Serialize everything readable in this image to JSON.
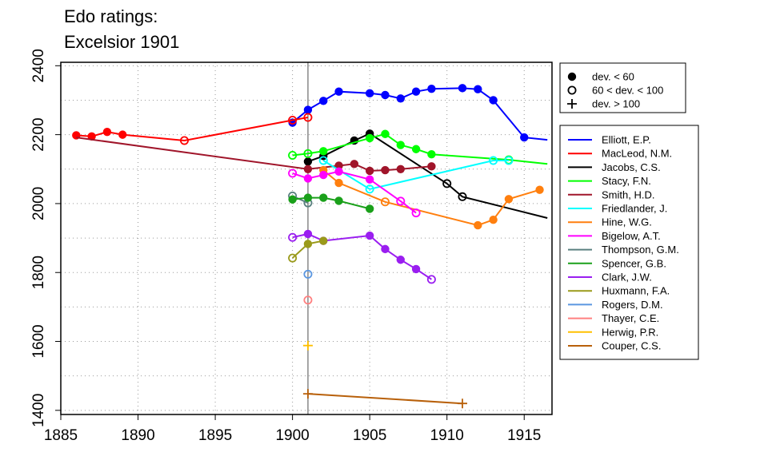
{
  "chart_data": {
    "type": "line",
    "title": "Edo ratings:",
    "subtitle": "Excelsior 1901",
    "xlim": [
      1885,
      1916.8
    ],
    "ylim": [
      1388,
      2410
    ],
    "xticks": [
      "1885",
      "1890",
      "1895",
      "1900",
      "1905",
      "1910",
      "1915"
    ],
    "yticks": [
      "1400",
      "1600",
      "1800",
      "2000",
      "2200",
      "2400"
    ],
    "grid": true,
    "reference_line_x": 1901,
    "marker_legend": {
      "placement": "top-right, outside plot",
      "entries": [
        {
          "marker": "filled",
          "label": "dev. < 60"
        },
        {
          "marker": "open",
          "label": "60 < dev. < 100"
        },
        {
          "marker": "plus",
          "label": "dev. > 100"
        }
      ]
    },
    "series": [
      {
        "name": "Elliott, E.P.",
        "color": "#0000ff",
        "points": [
          [
            1900,
            2235,
            "filled"
          ],
          [
            1901,
            2272,
            "filled"
          ],
          [
            1902,
            2298,
            "filled"
          ],
          [
            1903,
            2325,
            "filled"
          ],
          [
            1905,
            2320,
            "filled"
          ],
          [
            1906,
            2315,
            "filled"
          ],
          [
            1907,
            2305,
            "filled"
          ],
          [
            1908,
            2325,
            "filled"
          ],
          [
            1909,
            2333,
            "filled"
          ],
          [
            1911,
            2335,
            "filled"
          ],
          [
            1912,
            2332,
            "filled"
          ],
          [
            1913,
            2300,
            "filled"
          ],
          [
            1915,
            2192,
            "filled"
          ],
          [
            1916.5,
            2185,
            "none"
          ]
        ]
      },
      {
        "name": "MacLeod, N.M.",
        "color": "#ff0000",
        "points": [
          [
            1886,
            2198,
            "filled"
          ],
          [
            1887,
            2195,
            "filled"
          ],
          [
            1888,
            2208,
            "filled"
          ],
          [
            1889,
            2200,
            "filled"
          ],
          [
            1893,
            2183,
            "open"
          ],
          [
            1900,
            2242,
            "open"
          ],
          [
            1901,
            2250,
            "open"
          ]
        ]
      },
      {
        "name": "Jacobs, C.S.",
        "color": "#000000",
        "points": [
          [
            1901,
            2122,
            "filled"
          ],
          [
            1902,
            2138,
            "filled"
          ],
          [
            1904,
            2183,
            "filled"
          ],
          [
            1905,
            2203,
            "filled"
          ],
          [
            1910,
            2058,
            "open"
          ],
          [
            1911,
            2020,
            "open"
          ],
          [
            1916.5,
            1958,
            "none"
          ]
        ]
      },
      {
        "name": "Stacy, F.N.",
        "color": "#00ff00",
        "points": [
          [
            1900,
            2140,
            "open"
          ],
          [
            1901,
            2145,
            "open"
          ],
          [
            1902,
            2152,
            "filled"
          ],
          [
            1905,
            2190,
            "filled"
          ],
          [
            1906,
            2202,
            "filled"
          ],
          [
            1907,
            2170,
            "filled"
          ],
          [
            1908,
            2158,
            "filled"
          ],
          [
            1909,
            2143,
            "filled"
          ],
          [
            1914,
            2127,
            "open"
          ],
          [
            1916.5,
            2115,
            "none"
          ]
        ]
      },
      {
        "name": "Smith, H.D.",
        "color": "#a0152a",
        "points": [
          [
            1886,
            2192,
            "none"
          ],
          [
            1901,
            2100,
            "filled"
          ],
          [
            1903,
            2110,
            "filled"
          ],
          [
            1904,
            2115,
            "filled"
          ],
          [
            1905,
            2095,
            "filled"
          ],
          [
            1906,
            2097,
            "filled"
          ],
          [
            1907,
            2100,
            "filled"
          ],
          [
            1909,
            2108,
            "filled"
          ]
        ]
      },
      {
        "name": "Friedlander, J.",
        "color": "#00ffff",
        "points": [
          [
            1902,
            2125,
            "open"
          ],
          [
            1905,
            2042,
            "open"
          ],
          [
            1913,
            2125,
            "open"
          ],
          [
            1914,
            2125,
            "open"
          ]
        ]
      },
      {
        "name": "Hine, W.G.",
        "color": "#ff7f0e",
        "points": [
          [
            1902,
            2097,
            "filled"
          ],
          [
            1903,
            2060,
            "filled"
          ],
          [
            1906,
            2005,
            "open"
          ],
          [
            1912,
            1937,
            "filled"
          ],
          [
            1913,
            1953,
            "filled"
          ],
          [
            1914,
            2013,
            "filled"
          ],
          [
            1916,
            2040,
            "filled"
          ]
        ]
      },
      {
        "name": "Bigelow, A.T.",
        "color": "#ff00ff",
        "points": [
          [
            1900,
            2088,
            "open"
          ],
          [
            1901,
            2073,
            "filled"
          ],
          [
            1902,
            2083,
            "filled"
          ],
          [
            1903,
            2093,
            "filled"
          ],
          [
            1905,
            2070,
            "filled"
          ],
          [
            1907,
            2007,
            "open"
          ],
          [
            1908,
            1973,
            "open"
          ]
        ]
      },
      {
        "name": "Thompson, G.M.",
        "color": "#5a8080",
        "points": [
          [
            1900,
            2022,
            "open"
          ],
          [
            1901,
            2002,
            "open"
          ]
        ]
      },
      {
        "name": "Spencer, G.B.",
        "color": "#1aa01a",
        "points": [
          [
            1900,
            2012,
            "filled"
          ],
          [
            1901,
            2017,
            "filled"
          ],
          [
            1902,
            2017,
            "filled"
          ],
          [
            1903,
            2008,
            "filled"
          ],
          [
            1905,
            1985,
            "filled"
          ]
        ]
      },
      {
        "name": "Clark, J.W.",
        "color": "#9a1ef0",
        "points": [
          [
            1900,
            1902,
            "open"
          ],
          [
            1901,
            1912,
            "filled"
          ],
          [
            1902,
            1892,
            "filled"
          ],
          [
            1905,
            1907,
            "filled"
          ],
          [
            1906,
            1868,
            "filled"
          ],
          [
            1907,
            1837,
            "filled"
          ],
          [
            1908,
            1810,
            "filled"
          ],
          [
            1909,
            1780,
            "open"
          ]
        ]
      },
      {
        "name": "Huxmann, F.A.",
        "color": "#9a9a1a",
        "points": [
          [
            1900,
            1842,
            "open"
          ],
          [
            1901,
            1883,
            "filled"
          ],
          [
            1902,
            1892,
            "filled"
          ]
        ]
      },
      {
        "name": "Rogers, D.M.",
        "color": "#5a96e0",
        "points": [
          [
            1901,
            1795,
            "open"
          ]
        ]
      },
      {
        "name": "Thayer, C.E.",
        "color": "#ff8080",
        "points": [
          [
            1901,
            1720,
            "open"
          ]
        ]
      },
      {
        "name": "Herwig, P.R.",
        "color": "#ffc000",
        "points": [
          [
            1901,
            1588,
            "plus"
          ]
        ]
      },
      {
        "name": "Couper, C.S.",
        "color": "#b8600a",
        "points": [
          [
            1901,
            1448,
            "plus"
          ],
          [
            1911,
            1420,
            "plus"
          ]
        ]
      }
    ]
  }
}
